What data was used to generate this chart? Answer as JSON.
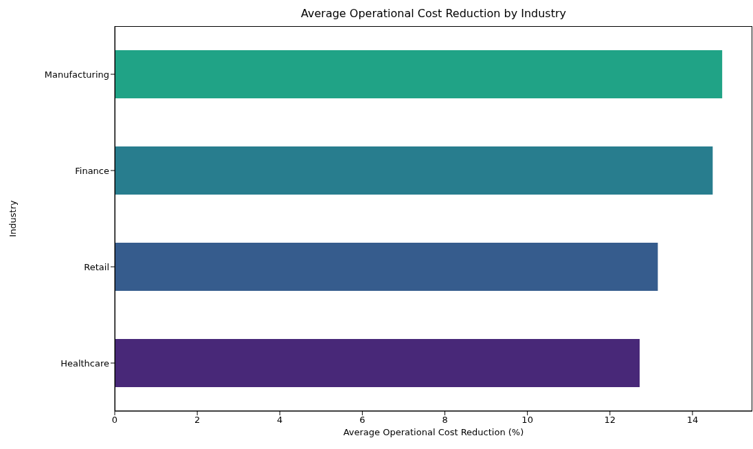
{
  "chart_data": {
    "type": "bar",
    "orientation": "horizontal",
    "title": "Average Operational Cost Reduction by Industry",
    "xlabel": "Average Operational Cost Reduction (%)",
    "ylabel": "Industry",
    "categories": [
      "Manufacturing",
      "Finance",
      "Retail",
      "Healthcare"
    ],
    "values": [
      14.72,
      14.49,
      13.16,
      12.72
    ],
    "colors": [
      "#20a386",
      "#287d8e",
      "#365c8d",
      "#482878"
    ],
    "xlim": [
      0,
      15.45
    ],
    "xticks": [
      0,
      2,
      4,
      6,
      8,
      10,
      12,
      14
    ],
    "grid": false,
    "legend": false
  }
}
